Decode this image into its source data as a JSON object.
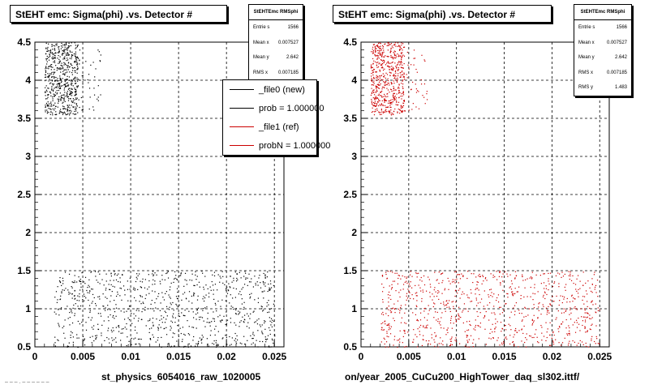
{
  "panels": [
    {
      "title": "StEHT emc: Sigma(phi) .vs. Detector #",
      "stats": {
        "name": "StEHTEmc RMSphi",
        "rows": [
          {
            "label": "Entrie s",
            "value": "1566"
          },
          {
            "label": "Mean  x",
            "value": "0.007527"
          },
          {
            "label": "Mean y",
            "value": "2.642"
          },
          {
            "label": "RMS  x",
            "value": "0.007185"
          }
        ]
      },
      "legend": [
        {
          "label": "_file0 (new)",
          "color": "#000000"
        },
        {
          "label": "prob = 1.000000",
          "color": "#000000"
        },
        {
          "label": "_file1 (ref)",
          "color": "#cc0000"
        },
        {
          "label": "probN = 1.000000",
          "color": "#cc0000"
        }
      ],
      "xaxis_title": "st_physics_6054016_raw_1020005",
      "point_color": "#000000"
    },
    {
      "title": "StEHT emc: Sigma(phi) .vs. Detector #",
      "stats": {
        "name": "StEHTEmc RMSphi",
        "rows": [
          {
            "label": "Entrie s",
            "value": "1566"
          },
          {
            "label": "Mean  x",
            "value": "0.007527"
          },
          {
            "label": "Mean y",
            "value": "2.642"
          },
          {
            "label": "RMS  x",
            "value": "0.007185"
          },
          {
            "label": "RMS  y",
            "value": "1.483"
          }
        ]
      },
      "xaxis_title": "on/year_2005_CuCu200_HighTower_daq_sl302.ittf/",
      "point_color": "#cc0000"
    }
  ],
  "footer": "– – – . – – – – – –",
  "chart_data": {
    "type": "scatter",
    "xlim": [
      0,
      0.026
    ],
    "ylim": [
      0.5,
      4.5
    ],
    "xticks": [
      "0",
      "0.005",
      "0.01",
      "0.015",
      "0.02",
      "0.025"
    ],
    "yticks": [
      "0.5",
      "1",
      "1.5",
      "2",
      "2.5",
      "3",
      "3.5",
      "4",
      "4.5"
    ],
    "grid": true,
    "series": [
      {
        "name": "_file0 (new)",
        "clusters": [
          {
            "x_range": [
              0.001,
              0.0045
            ],
            "y_range": [
              3.55,
              4.5
            ],
            "n": 600
          },
          {
            "x_range": [
              0.0045,
              0.007
            ],
            "y_range": [
              3.6,
              4.45
            ],
            "n": 40
          },
          {
            "x_range": [
              0.002,
              0.025
            ],
            "y_range": [
              0.5,
              1.5
            ],
            "n": 900
          }
        ]
      },
      {
        "name": "_file1 (ref)",
        "clusters": [
          {
            "x_range": [
              0.001,
              0.0045
            ],
            "y_range": [
              3.55,
              4.5
            ],
            "n": 600
          },
          {
            "x_range": [
              0.0045,
              0.007
            ],
            "y_range": [
              3.6,
              4.45
            ],
            "n": 40
          },
          {
            "x_range": [
              0.002,
              0.025
            ],
            "y_range": [
              0.5,
              1.5
            ],
            "n": 900
          }
        ]
      }
    ]
  }
}
